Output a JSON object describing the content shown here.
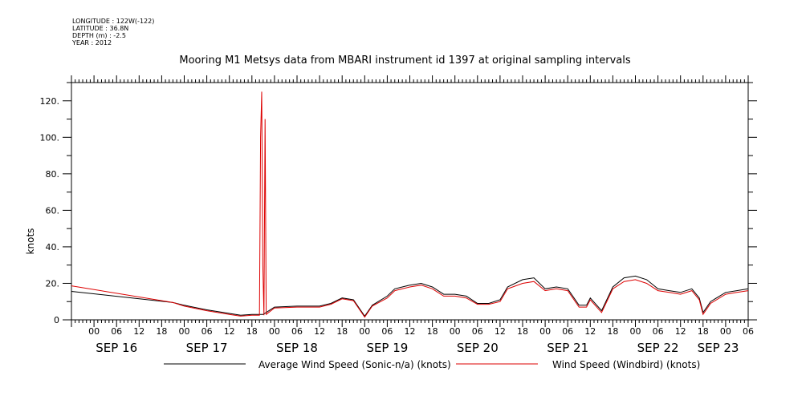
{
  "header": {
    "meta": [
      "LONGITUDE : 122W(-122)",
      "LATITUDE : 36.8N",
      "DEPTH (m) : -2.5",
      "YEAR : 2012"
    ]
  },
  "chart_data": {
    "type": "line",
    "title": "Mooring M1 Metsys data from MBARI instrument id 1397 at original sampling intervals",
    "ylabel": "knots",
    "xlabel": "",
    "ylim": [
      0,
      130
    ],
    "xlim_hours": [
      -6,
      174
    ],
    "y_ticks": [
      "0",
      "20.",
      "40.",
      "60.",
      "80.",
      "100.",
      "120."
    ],
    "y_tick_values": [
      0,
      20,
      40,
      60,
      80,
      100,
      120
    ],
    "hour_tick_labels": [
      "00",
      "06",
      "12",
      "18",
      "00",
      "06",
      "12",
      "18",
      "00",
      "06",
      "12",
      "18",
      "00",
      "06",
      "12",
      "18",
      "00",
      "06",
      "12",
      "18",
      "00",
      "06",
      "12",
      "18",
      "00",
      "06",
      "12",
      "18",
      "00",
      "06"
    ],
    "date_labels": [
      "SEP 16",
      "SEP 17",
      "SEP 18",
      "SEP 19",
      "SEP 20",
      "SEP 21",
      "SEP 22",
      "SEP 23"
    ],
    "grid": false,
    "legend_position": "bottom",
    "series": [
      {
        "name": "Average Wind Speed (Sonic-n/a) (knots)",
        "color": "#000000",
        "points": [
          [
            -6,
            15.6
          ],
          [
            21,
            9.5
          ],
          [
            24,
            8
          ],
          [
            30,
            5.5
          ],
          [
            36,
            3.5
          ],
          [
            39,
            2.5
          ],
          [
            42,
            3
          ],
          [
            45,
            3
          ],
          [
            48,
            7
          ],
          [
            54,
            7.5
          ],
          [
            60,
            7.5
          ],
          [
            63,
            9
          ],
          [
            66,
            12
          ],
          [
            69,
            11
          ],
          [
            72,
            2
          ],
          [
            74,
            8
          ],
          [
            78,
            13
          ],
          [
            80,
            17
          ],
          [
            84,
            19
          ],
          [
            87,
            20
          ],
          [
            90,
            18
          ],
          [
            93,
            14
          ],
          [
            96,
            14
          ],
          [
            99,
            13
          ],
          [
            102,
            9
          ],
          [
            105,
            9
          ],
          [
            108,
            11
          ],
          [
            110,
            18
          ],
          [
            114,
            22
          ],
          [
            117,
            23
          ],
          [
            120,
            17
          ],
          [
            123,
            18
          ],
          [
            126,
            17
          ],
          [
            129,
            8
          ],
          [
            131,
            8
          ],
          [
            132,
            12
          ],
          [
            135,
            5
          ],
          [
            138,
            18
          ],
          [
            141,
            23
          ],
          [
            144,
            24
          ],
          [
            147,
            22
          ],
          [
            150,
            17
          ],
          [
            153,
            16
          ],
          [
            156,
            15
          ],
          [
            159,
            17
          ],
          [
            161,
            12
          ],
          [
            162,
            4
          ],
          [
            164,
            10
          ],
          [
            168,
            15
          ],
          [
            171,
            16
          ],
          [
            174,
            17
          ]
        ]
      },
      {
        "name": "Wind Speed (Windbird) (knots)",
        "color": "#dd0000",
        "points": [
          [
            -6,
            18.6
          ],
          [
            21,
            9.5
          ],
          [
            24,
            7.5
          ],
          [
            30,
            5
          ],
          [
            36,
            3
          ],
          [
            39,
            2
          ],
          [
            42,
            2.5
          ],
          [
            44,
            2.5
          ],
          [
            44.3,
            100
          ],
          [
            44.6,
            125
          ],
          [
            44.9,
            30
          ],
          [
            45.2,
            2.5
          ],
          [
            45.5,
            110
          ],
          [
            45.8,
            3
          ],
          [
            48,
            6.5
          ],
          [
            54,
            7
          ],
          [
            60,
            7
          ],
          [
            63,
            8.5
          ],
          [
            66,
            11.5
          ],
          [
            69,
            10.5
          ],
          [
            72,
            1.5
          ],
          [
            74,
            7.5
          ],
          [
            78,
            12
          ],
          [
            80,
            16
          ],
          [
            84,
            18
          ],
          [
            87,
            19
          ],
          [
            90,
            17
          ],
          [
            93,
            13
          ],
          [
            96,
            13
          ],
          [
            99,
            12
          ],
          [
            102,
            8.5
          ],
          [
            105,
            8.5
          ],
          [
            108,
            10
          ],
          [
            110,
            17
          ],
          [
            114,
            20
          ],
          [
            117,
            21
          ],
          [
            120,
            16
          ],
          [
            123,
            17
          ],
          [
            126,
            16
          ],
          [
            129,
            7
          ],
          [
            131,
            7
          ],
          [
            132,
            11
          ],
          [
            135,
            4
          ],
          [
            138,
            17
          ],
          [
            141,
            21
          ],
          [
            144,
            22
          ],
          [
            147,
            20
          ],
          [
            150,
            16
          ],
          [
            153,
            15
          ],
          [
            156,
            14
          ],
          [
            159,
            16
          ],
          [
            161,
            11
          ],
          [
            162,
            3
          ],
          [
            164,
            9
          ],
          [
            168,
            14
          ],
          [
            171,
            15
          ],
          [
            174,
            16
          ]
        ]
      }
    ]
  }
}
